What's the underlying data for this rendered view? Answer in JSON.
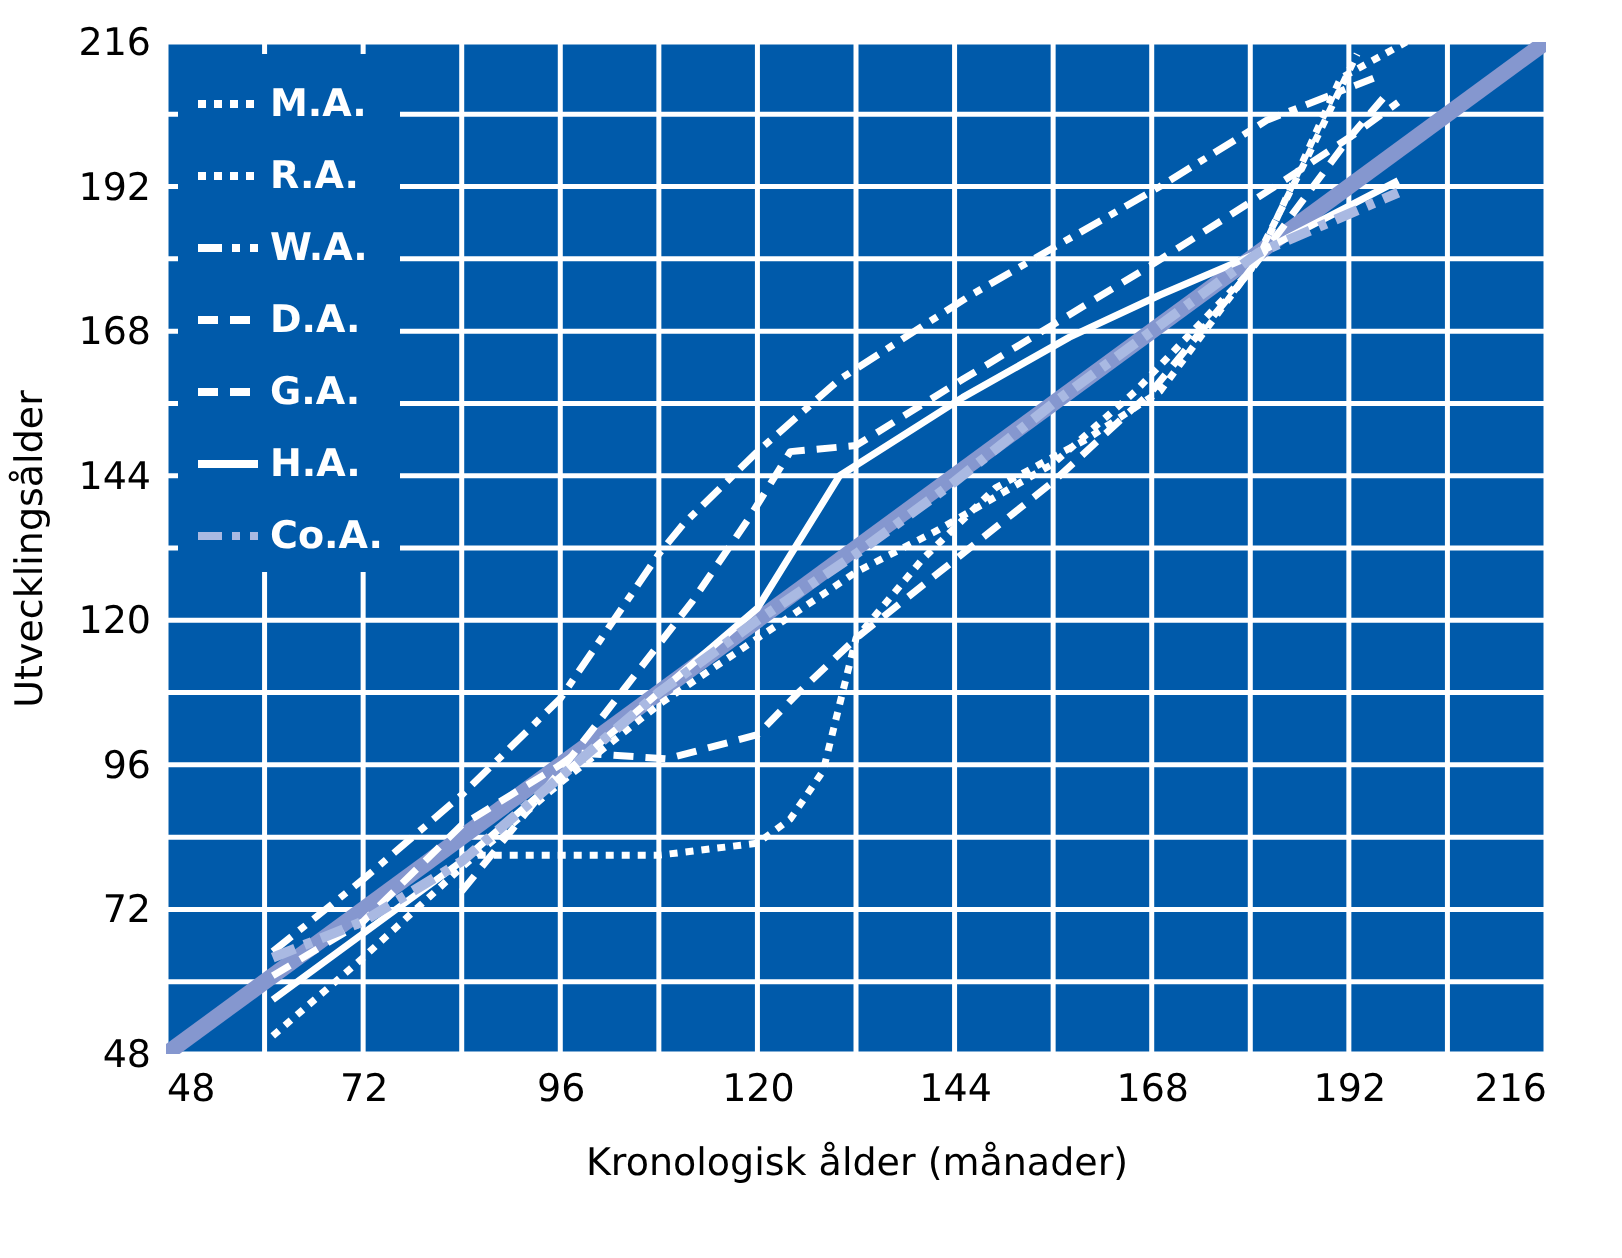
{
  "chart_data": {
    "type": "line",
    "xlabel": "Kronologisk ålder (månader)",
    "ylabel": "Utvecklingsålder",
    "xlim": [
      48,
      216
    ],
    "ylim": [
      48,
      216
    ],
    "xticks": [
      48,
      {
        "value": 60,
        "label": null
      },
      72,
      {
        "value": 84,
        "label": null
      },
      96,
      {
        "value": 108,
        "label": null
      },
      120,
      {
        "value": 132,
        "label": null
      },
      144,
      {
        "value": 156,
        "label": null
      },
      168,
      {
        "value": 180,
        "label": null
      },
      192,
      {
        "value": 204,
        "label": null
      },
      216
    ],
    "yticks": [
      48,
      {
        "value": 60,
        "label": null
      },
      72,
      {
        "value": 84,
        "label": null
      },
      96,
      {
        "value": 108,
        "label": null
      },
      120,
      {
        "value": 132,
        "label": null
      },
      144,
      {
        "value": 156,
        "label": null
      },
      168,
      {
        "value": 180,
        "label": null
      },
      192,
      {
        "value": 204,
        "label": null
      },
      216
    ],
    "grid": true,
    "legend": "top left",
    "marker": "none",
    "series": [
      {
        "color": "#8597cf",
        "line_style": "solid",
        "x": [
          48,
          216
        ],
        "values": [
          48,
          216
        ]
      },
      {
        "name": "M.A.",
        "color": "#ffffff",
        "line_style": "dotted",
        "x": [
          61,
          72,
          84,
          96,
          108,
          120,
          132,
          142,
          156,
          166,
          180,
          187,
          193
        ],
        "values": [
          51,
          64,
          79,
          93,
          106,
          117,
          128,
          135,
          146,
          158,
          178,
          197,
          214
        ]
      },
      {
        "name": "R.A.",
        "color": "#ffffff",
        "line_style": "dotted",
        "x": [
          84,
          96,
          108,
          120,
          124,
          128,
          132,
          140,
          149,
          160,
          169,
          181,
          191,
          199
        ],
        "values": [
          81,
          81,
          81,
          83,
          87,
          95,
          117,
          130,
          142,
          150,
          158,
          180,
          210,
          216
        ]
      },
      {
        "name": "W.A.",
        "color": "#ffffff",
        "line_style": "dashdot",
        "x": [
          61,
          72,
          84,
          96,
          108,
          111,
          120,
          130,
          146,
          169,
          182,
          195
        ],
        "values": [
          65,
          77,
          91,
          107,
          131,
          136,
          148,
          160,
          174,
          192,
          203,
          210
        ]
      },
      {
        "name": "D.A.",
        "color": "#ffffff",
        "line_style": "dashed",
        "x": [
          61,
          72,
          84,
          96,
          98,
          109,
          120,
          125,
          132,
          144,
          156,
          168,
          180,
          192,
          197
        ],
        "values": [
          61,
          70,
          86,
          96,
          98,
          97,
          101,
          108,
          117,
          130,
          143,
          158,
          178,
          200,
          208
        ]
      },
      {
        "name": "G.A.",
        "color": "#ffffff",
        "line_style": "dashed",
        "x": [
          84,
          96,
          112,
          119,
          124,
          132,
          145,
          168,
          183,
          193,
          198
        ],
        "values": [
          75,
          95,
          123,
          137,
          148,
          149,
          160,
          179,
          192,
          201,
          206
        ]
      },
      {
        "name": "H.A.",
        "color": "#ffffff",
        "line_style": "solid",
        "x": [
          61,
          72,
          84,
          96,
          108,
          120,
          130,
          145,
          158,
          169,
          181,
          198
        ],
        "values": [
          57,
          68,
          80,
          94,
          108,
          122,
          144,
          157,
          167,
          174,
          181,
          193
        ]
      },
      {
        "name": "Co.A.",
        "color": "#a9b9e2",
        "line_style": "dashdot",
        "x": [
          61,
          72,
          84,
          96,
          108,
          120,
          132,
          144,
          156,
          168,
          181,
          198
        ],
        "values": [
          64,
          70,
          80,
          94,
          108,
          120,
          131,
          143,
          156,
          168,
          181,
          191
        ]
      }
    ]
  }
}
